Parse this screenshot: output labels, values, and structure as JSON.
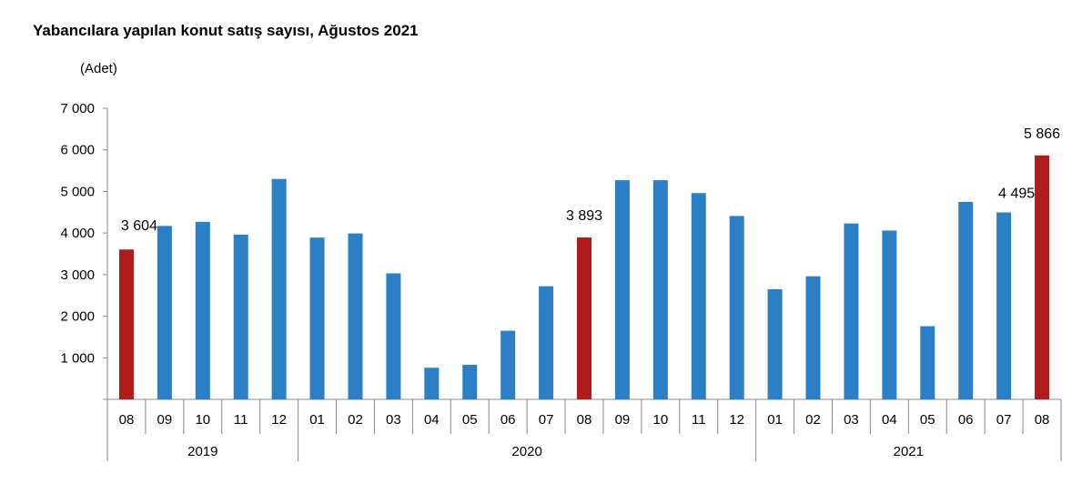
{
  "chart_data": {
    "type": "bar",
    "title": "Yabancılara yapılan konut satış sayısı, Ağustos 2021",
    "ylabel": "(Adet)",
    "xlabel": "",
    "ylim": [
      0,
      7000
    ],
    "yticks": [
      1000,
      2000,
      3000,
      4000,
      5000,
      6000,
      7000
    ],
    "ytick_labels": [
      "1 000",
      "2 000",
      "3 000",
      "4 000",
      "5 000",
      "6 000",
      "7 000"
    ],
    "grid": false,
    "categories": [
      "08",
      "09",
      "10",
      "11",
      "12",
      "01",
      "02",
      "03",
      "04",
      "05",
      "06",
      "07",
      "08",
      "09",
      "10",
      "11",
      "12",
      "01",
      "02",
      "03",
      "04",
      "05",
      "06",
      "07",
      "08"
    ],
    "year_groups": [
      {
        "label": "2019",
        "count": 5
      },
      {
        "label": "2020",
        "count": 12
      },
      {
        "label": "2021",
        "count": 8
      }
    ],
    "values": [
      3604,
      4170,
      4270,
      3960,
      5300,
      3890,
      3990,
      3030,
      760,
      830,
      1650,
      2720,
      3893,
      5270,
      5270,
      4960,
      4410,
      2650,
      2960,
      4230,
      4060,
      1760,
      4750,
      4495,
      5866
    ],
    "data_labels": {
      "0": "3 604",
      "12": "3 893",
      "23": "4 495",
      "24": "5 866"
    },
    "highlight_indices": [
      0,
      12,
      24
    ],
    "colors": {
      "bar": "#2a7fc6",
      "highlight": "#b01b1b",
      "axis": "#888888"
    }
  }
}
